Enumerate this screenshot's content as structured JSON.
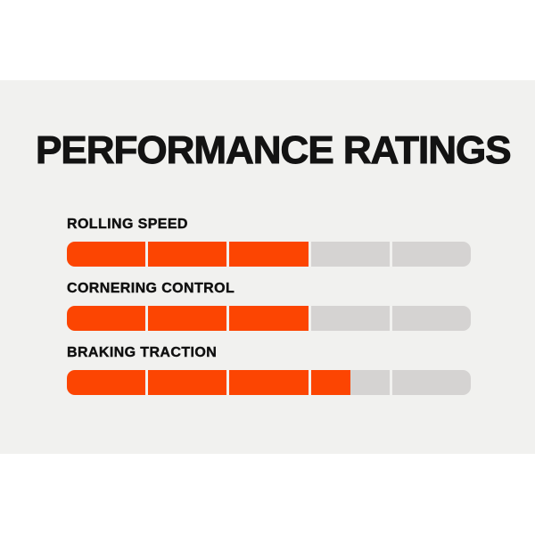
{
  "page": {
    "background_color": "#ffffff",
    "panel_background_color": "#f1f1ef"
  },
  "chart_data": {
    "type": "bar",
    "orientation": "horizontal",
    "title": "PERFORMANCE RATINGS",
    "categories": [
      "ROLLING SPEED",
      "CORNERING CONTROL",
      "BRAKING TRACTION"
    ],
    "values": [
      3,
      3,
      3.5
    ],
    "max": 5,
    "segments_per_bar": 5,
    "bar_color": "#fc4502",
    "track_color": "#d5d3d2",
    "title_color": "#131313",
    "label_color": "#101010",
    "legend": "none",
    "grid": "off"
  }
}
